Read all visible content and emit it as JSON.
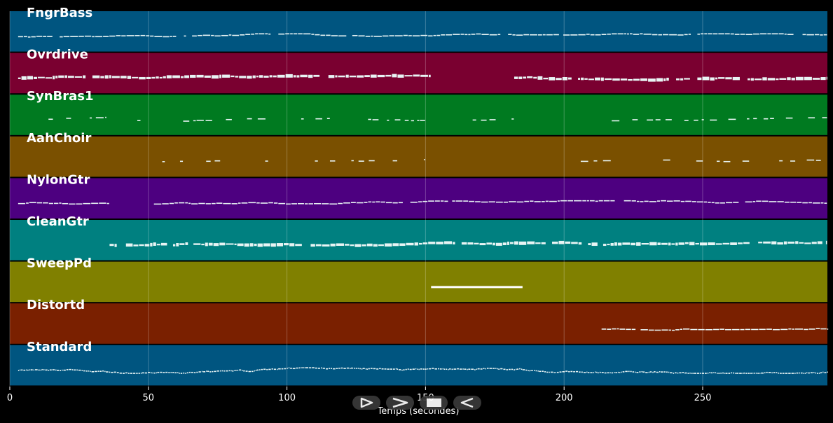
{
  "chart_data": {
    "type": "piano-roll",
    "xlabel": "Temps (secondes)",
    "xlim": [
      0,
      295
    ],
    "xticks": [
      0,
      50,
      100,
      150,
      200,
      250
    ],
    "grid": true,
    "tracks": [
      {
        "name": "FngrBass",
        "color": "#005580",
        "density": 0.9,
        "spans": [
          [
            3,
            295
          ]
        ]
      },
      {
        "name": "Ovrdrive",
        "color": "#7a0030",
        "density": 0.95,
        "spans": [
          [
            3,
            152
          ],
          [
            182,
            295
          ]
        ]
      },
      {
        "name": "SynBras1",
        "color": "#007a20",
        "density": 0.55,
        "spans": [
          [
            3,
            35
          ],
          [
            46,
            150
          ],
          [
            167,
            182
          ],
          [
            206,
            295
          ]
        ]
      },
      {
        "name": "AahChoir",
        "color": "#7a5000",
        "density": 0.4,
        "spans": [
          [
            55,
            100
          ],
          [
            105,
            150
          ],
          [
            172,
            174
          ],
          [
            206,
            295
          ]
        ]
      },
      {
        "name": "NylonGtr",
        "color": "#4d0080",
        "density": 0.95,
        "spans": [
          [
            3,
            36
          ],
          [
            52,
            295
          ]
        ]
      },
      {
        "name": "CleanGtr",
        "color": "#008080",
        "density": 0.95,
        "spans": [
          [
            36,
            295
          ]
        ]
      },
      {
        "name": "SweepPd",
        "color": "#808000",
        "density": 1,
        "spans": [
          [
            152,
            185
          ]
        ]
      },
      {
        "name": "Distortd",
        "color": "#7a2000",
        "density": 0.9,
        "spans": [
          [
            212,
            295
          ]
        ]
      },
      {
        "name": "Standard",
        "color": "#005580",
        "density": 1,
        "spans": [
          [
            3,
            295
          ]
        ]
      }
    ]
  },
  "controls": [
    {
      "name": "play-button",
      "icon": "play-icon"
    },
    {
      "name": "fast-forward-button",
      "icon": "fast-forward-icon"
    },
    {
      "name": "stop-button",
      "icon": "stop-icon"
    },
    {
      "name": "rewind-button",
      "icon": "rewind-icon"
    }
  ]
}
